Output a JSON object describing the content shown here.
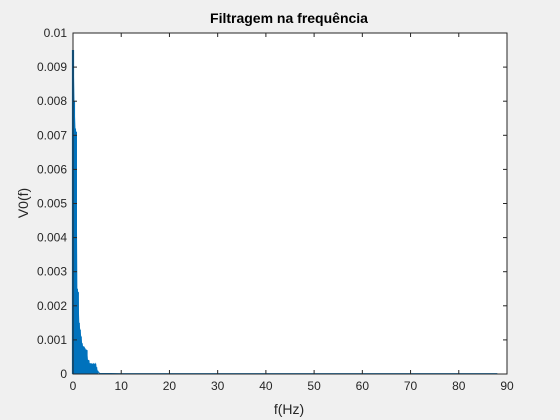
{
  "chart_data": {
    "type": "line",
    "title": "Filtragem na frequência",
    "xlabel": "f(Hz)",
    "ylabel": "V0(f)",
    "xlim": [
      0,
      90
    ],
    "ylim": [
      0,
      0.01
    ],
    "xticks": [
      0,
      10,
      20,
      30,
      40,
      50,
      60,
      70,
      80,
      90
    ],
    "yticks": [
      0,
      0.001,
      0.002,
      0.003,
      0.004,
      0.005,
      0.006,
      0.007,
      0.008,
      0.009,
      0.01
    ],
    "xtick_labels": [
      "0",
      "10",
      "20",
      "30",
      "40",
      "50",
      "60",
      "70",
      "80",
      "90"
    ],
    "ytick_labels": [
      "0",
      "0.001",
      "0.002",
      "0.003",
      "0.004",
      "0.005",
      "0.006",
      "0.007",
      "0.008",
      "0.009",
      "0.01"
    ],
    "grid": false,
    "series": [
      {
        "color": "#0072bd",
        "x": [
          0,
          0.2,
          0.4,
          0.6,
          0.8,
          1.0,
          1.2,
          1.4,
          1.6,
          1.8,
          2.0,
          2.2,
          2.4,
          2.6,
          2.8,
          3.0,
          3.2,
          3.4,
          3.6,
          3.8,
          4.0,
          4.2,
          4.4,
          4.6,
          4.8,
          5.0,
          5.5,
          10,
          20,
          30,
          40,
          50,
          60,
          70,
          80,
          88
        ],
        "y": [
          0.0095,
          0.008,
          0.0072,
          0.0071,
          0.0025,
          0.0024,
          0.0015,
          0.0013,
          0.0011,
          0.0009,
          0.0008,
          0.0008,
          0.00075,
          0.0007,
          0.0007,
          0.0004,
          0.0004,
          0.0003,
          0.0003,
          0.0003,
          0.00025,
          0.0003,
          0.00025,
          0.0003,
          0.0002,
          0.0001,
          2e-05,
          1e-05,
          1e-05,
          1e-05,
          1e-05,
          1e-05,
          1e-05,
          1e-05,
          1e-05,
          1e-05
        ]
      }
    ]
  }
}
